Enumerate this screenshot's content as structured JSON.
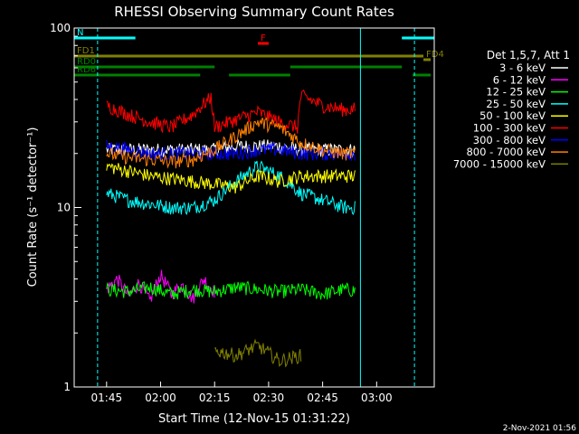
{
  "chart_data": {
    "type": "line",
    "title": "RHESSI Observing Summary Count Rates",
    "xlabel": "Start Time (12-Nov-15 01:31:22)",
    "ylabel": "Count Rate (s⁻¹ detector⁻¹)",
    "yscale": "log",
    "ylim": [
      1,
      100
    ],
    "xlim_minutes": [
      5,
      105
    ],
    "x_ticks": [
      {
        "t": 14,
        "label": "01:45"
      },
      {
        "t": 29,
        "label": "02:00"
      },
      {
        "t": 44,
        "label": "02:15"
      },
      {
        "t": 59,
        "label": "02:30"
      },
      {
        "t": 74,
        "label": "02:45"
      },
      {
        "t": 89,
        "label": "03:00"
      }
    ],
    "y_ticks": [
      {
        "v": 1,
        "label": "1"
      },
      {
        "v": 10,
        "label": "10"
      },
      {
        "v": 100,
        "label": "100"
      }
    ],
    "legend_title": "Det 1,5,7, Att 1",
    "series": [
      {
        "name": "3 - 6 keV",
        "color": "#ffffff",
        "x": [
          14,
          20,
          26,
          32,
          38,
          44,
          50,
          56,
          62,
          68,
          74,
          80,
          86
        ],
        "y": [
          21,
          21,
          21,
          21,
          21,
          21,
          22,
          22,
          22,
          21,
          21,
          21,
          21
        ]
      },
      {
        "name": "6 - 12 keV",
        "color": "#ff00ff",
        "x": [
          14,
          17,
          20,
          23,
          26,
          29,
          32,
          35,
          38,
          41,
          44
        ],
        "y": [
          3.5,
          4.0,
          3.2,
          3.8,
          3.0,
          4.2,
          3.3,
          3.7,
          3.1,
          4.0,
          3.4
        ]
      },
      {
        "name": "12 - 25 keV",
        "color": "#00ff00",
        "x": [
          14,
          20,
          26,
          32,
          38,
          44,
          50,
          56,
          62,
          68,
          74,
          80,
          86
        ],
        "y": [
          3.5,
          3.4,
          3.6,
          3.3,
          3.5,
          3.4,
          3.6,
          3.5,
          3.4,
          3.5,
          3.3,
          3.5,
          3.4
        ]
      },
      {
        "name": "25 - 50 keV",
        "color": "#00ffff",
        "x": [
          14,
          20,
          26,
          32,
          38,
          44,
          50,
          56,
          62,
          68,
          74,
          80,
          86
        ],
        "y": [
          12,
          11,
          10.5,
          10,
          10,
          11,
          14,
          17,
          15,
          12,
          11,
          10,
          10
        ]
      },
      {
        "name": "50 - 100 keV",
        "color": "#ffff00",
        "x": [
          14,
          20,
          26,
          32,
          38,
          44,
          50,
          56,
          62,
          68,
          74,
          80,
          86
        ],
        "y": [
          17,
          16,
          15,
          14.5,
          14,
          13.5,
          13,
          15,
          14,
          15,
          15,
          15,
          15
        ]
      },
      {
        "name": "100 - 300 keV",
        "color": "#ff0000",
        "x": [
          14,
          20,
          26,
          32,
          38,
          43,
          44,
          50,
          56,
          62,
          67,
          68,
          74,
          80,
          86
        ],
        "y": [
          37,
          33,
          30,
          28,
          33,
          41,
          28,
          31,
          34,
          30,
          28,
          42,
          37,
          35,
          36
        ]
      },
      {
        "name": "300 - 800 keV",
        "color": "#0000ff",
        "x": [
          14,
          20,
          26,
          32,
          38,
          44,
          50,
          56,
          62,
          68,
          74,
          80,
          86
        ],
        "y": [
          22,
          21,
          20,
          20,
          20,
          20,
          20,
          21,
          21,
          20,
          20,
          20,
          20
        ]
      },
      {
        "name": "800 - 7000 keV",
        "color": "#ff8000",
        "x": [
          14,
          20,
          26,
          32,
          38,
          44,
          50,
          56,
          62,
          68,
          74,
          80,
          86
        ],
        "y": [
          20,
          19,
          18.5,
          18,
          18.5,
          21,
          25,
          30,
          28,
          23,
          21,
          20,
          20
        ]
      },
      {
        "name": "7000 - 15000 keV",
        "color": "#808000",
        "x": [
          44,
          50,
          56,
          62,
          68
        ],
        "y": [
          1.6,
          1.5,
          1.7,
          1.4,
          1.5
        ]
      }
    ],
    "flag_bars": [
      {
        "label": "N",
        "color": "#00ffff",
        "segments": [
          [
            5,
            22
          ],
          [
            96,
            105
          ]
        ]
      },
      {
        "label": "F",
        "color": "#ff0000",
        "segments": [
          [
            56,
            59
          ]
        ]
      },
      {
        "label": "FD1",
        "color": "#808000",
        "segments": [
          [
            5,
            102
          ]
        ]
      },
      {
        "label": "FD4",
        "color": "#808000",
        "segments": [
          [
            102,
            104
          ]
        ]
      },
      {
        "label": "RD0",
        "color": "#008000",
        "segments": [
          [
            5,
            44
          ],
          [
            65,
            96
          ]
        ]
      },
      {
        "label": "RD6",
        "color": "#008000",
        "segments": [
          [
            5,
            40
          ],
          [
            48,
            65
          ],
          [
            99,
            104
          ]
        ]
      }
    ],
    "vertical_lines": [
      {
        "t": 5,
        "color": "#00ffff",
        "style": "solid"
      },
      {
        "t": 11.5,
        "color": "#00ffff",
        "style": "dashed"
      },
      {
        "t": 84.5,
        "color": "#00ffff",
        "style": "solid"
      },
      {
        "t": 99.5,
        "color": "#00ffff",
        "style": "dashed"
      }
    ],
    "data_window": [
      11,
      83
    ],
    "footer_stamp": "2-Nov-2021 01:56"
  }
}
